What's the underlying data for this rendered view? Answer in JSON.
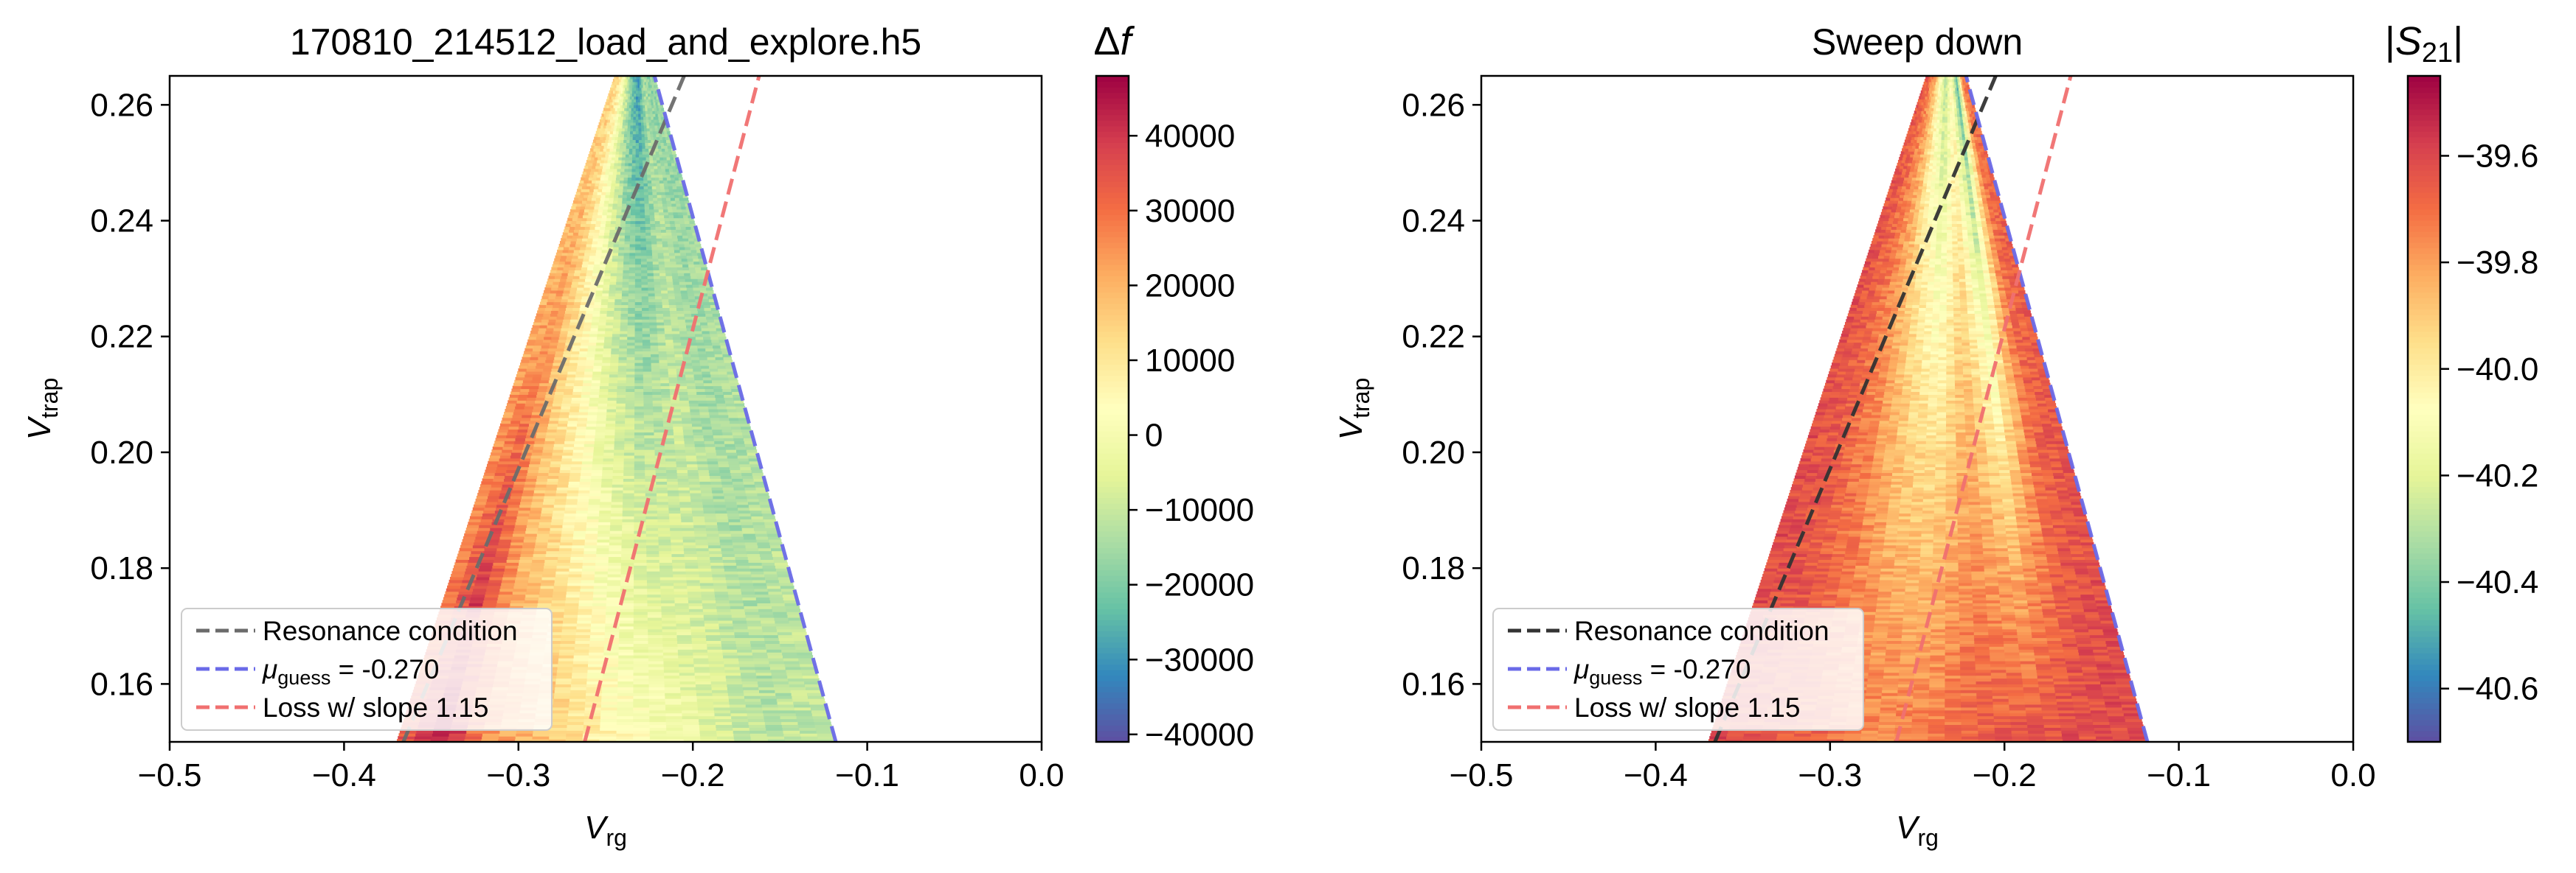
{
  "chart_data": [
    {
      "type": "heatmap",
      "title": "170810_214512_load_and_explore.h5",
      "xlabel": {
        "main": "V",
        "sub": "rg"
      },
      "ylabel": {
        "main": "V",
        "sub": "trap"
      },
      "xlim": [
        -0.5,
        0.0
      ],
      "ylim": [
        0.15,
        0.265
      ],
      "xticks": [
        "−0.5",
        "−0.4",
        "−0.3",
        "−0.2",
        "−0.1",
        "0.0"
      ],
      "xtick_values": [
        -0.5,
        -0.4,
        -0.3,
        -0.2,
        -0.1,
        0.0
      ],
      "yticks": [
        "0.16",
        "0.18",
        "0.20",
        "0.22",
        "0.24",
        "0.26"
      ],
      "ytick_values": [
        0.16,
        0.18,
        0.2,
        0.22,
        0.24,
        0.26
      ],
      "colorbar": {
        "label": "Δf",
        "range": [
          -41000,
          48000
        ],
        "ticks": [
          "40000",
          "30000",
          "20000",
          "10000",
          "0",
          "−10000",
          "−20000",
          "−30000",
          "−40000"
        ],
        "tick_values": [
          40000,
          30000,
          20000,
          10000,
          0,
          -10000,
          -20000,
          -30000,
          -40000
        ],
        "colormap": "Spectral_r"
      },
      "data_band": {
        "left_edge": [
          [
            -0.37,
            0.15
          ],
          [
            -0.245,
            0.265
          ]
        ],
        "right_edge": [
          [
            -0.118,
            0.15
          ],
          [
            -0.222,
            0.265
          ]
        ]
      },
      "column_values": [
        {
          "u": 0.0,
          "top": 14000,
          "bottom": 32000
        },
        {
          "u": 0.1,
          "top": 12000,
          "bottom": 46000
        },
        {
          "u": 0.2,
          "top": 6000,
          "bottom": 26000
        },
        {
          "u": 0.32,
          "top": -8000,
          "bottom": 18000
        },
        {
          "u": 0.45,
          "top": -22000,
          "bottom": 8000
        },
        {
          "u": 0.58,
          "top": -30000,
          "bottom": 2000
        },
        {
          "u": 0.72,
          "top": -14000,
          "bottom": -6000
        },
        {
          "u": 0.85,
          "top": -18000,
          "bottom": -12000
        },
        {
          "u": 1.0,
          "top": -16000,
          "bottom": -10000
        }
      ],
      "lines": [
        {
          "name": "Resonance condition",
          "color": "#6b6b6b",
          "points": [
            [
              -0.366,
              0.15
            ],
            [
              -0.205,
              0.265
            ]
          ]
        },
        {
          "name": "μguess = -0.270",
          "color": "#6a6ae8",
          "points": [
            [
              -0.118,
              0.15
            ],
            [
              -0.222,
              0.265
            ]
          ]
        },
        {
          "name": "Loss w/ slope 1.15",
          "color": "#f07070",
          "points": [
            [
              -0.262,
              0.15
            ],
            [
              -0.162,
              0.265
            ]
          ]
        }
      ],
      "legend": {
        "position": "lower-left",
        "entries": [
          {
            "label": "Resonance condition",
            "mu": "",
            "sub": "",
            "rest": ""
          },
          {
            "label": "",
            "mu": "μ",
            "sub": "guess",
            "rest": " = -0.270"
          },
          {
            "label": "Loss w/ slope 1.15",
            "mu": "",
            "sub": "",
            "rest": ""
          }
        ]
      }
    },
    {
      "type": "heatmap",
      "title": "Sweep down",
      "xlabel": {
        "main": "V",
        "sub": "rg"
      },
      "ylabel": {
        "main": "V",
        "sub": "trap"
      },
      "xlim": [
        -0.5,
        0.0
      ],
      "ylim": [
        0.15,
        0.265
      ],
      "xticks": [
        "−0.5",
        "−0.4",
        "−0.3",
        "−0.2",
        "−0.1",
        "0.0"
      ],
      "xtick_values": [
        -0.5,
        -0.4,
        -0.3,
        -0.2,
        -0.1,
        0.0
      ],
      "yticks": [
        "0.16",
        "0.18",
        "0.20",
        "0.22",
        "0.24",
        "0.26"
      ],
      "ytick_values": [
        0.16,
        0.18,
        0.2,
        0.22,
        0.24,
        0.26
      ],
      "colorbar": {
        "label": "|S21|",
        "range": [
          -40.7,
          -39.45
        ],
        "ticks": [
          "−39.6",
          "−39.8",
          "−40.0",
          "−40.2",
          "−40.4",
          "−40.6"
        ],
        "tick_values": [
          -39.6,
          -39.8,
          -40.0,
          -40.2,
          -40.4,
          -40.6
        ],
        "colormap": "Spectral_r"
      },
      "data_band": {
        "left_edge": [
          [
            -0.37,
            0.15
          ],
          [
            -0.245,
            0.265
          ]
        ],
        "right_edge": [
          [
            -0.118,
            0.15
          ],
          [
            -0.222,
            0.265
          ]
        ]
      },
      "column_values": [
        {
          "u": 0.0,
          "top": -39.63,
          "bottom": -39.6
        },
        {
          "u": 0.12,
          "top": -39.7,
          "bottom": -39.62
        },
        {
          "u": 0.25,
          "top": -39.85,
          "bottom": -39.68
        },
        {
          "u": 0.38,
          "top": -40.1,
          "bottom": -39.75
        },
        {
          "u": 0.5,
          "top": -40.3,
          "bottom": -39.72
        },
        {
          "u": 0.62,
          "top": -40.05,
          "bottom": -39.66
        },
        {
          "u": 0.75,
          "top": -40.45,
          "bottom": -39.63
        },
        {
          "u": 0.88,
          "top": -39.75,
          "bottom": -39.62
        },
        {
          "u": 1.0,
          "top": -39.68,
          "bottom": -39.6
        }
      ],
      "lines": [
        {
          "name": "Resonance condition",
          "color": "#333333",
          "points": [
            [
              -0.366,
              0.15
            ],
            [
              -0.205,
              0.265
            ]
          ]
        },
        {
          "name": "μguess = -0.270",
          "color": "#6a6ae8",
          "points": [
            [
              -0.118,
              0.15
            ],
            [
              -0.222,
              0.265
            ]
          ]
        },
        {
          "name": "Loss w/ slope 1.15",
          "color": "#f07070",
          "points": [
            [
              -0.262,
              0.15
            ],
            [
              -0.162,
              0.265
            ]
          ]
        }
      ],
      "legend": {
        "position": "lower-left",
        "entries": [
          {
            "label": "Resonance condition",
            "mu": "",
            "sub": "",
            "rest": ""
          },
          {
            "label": "",
            "mu": "μ",
            "sub": "guess",
            "rest": " = -0.270"
          },
          {
            "label": "Loss w/ slope 1.15",
            "mu": "",
            "sub": "",
            "rest": ""
          }
        ]
      }
    }
  ]
}
